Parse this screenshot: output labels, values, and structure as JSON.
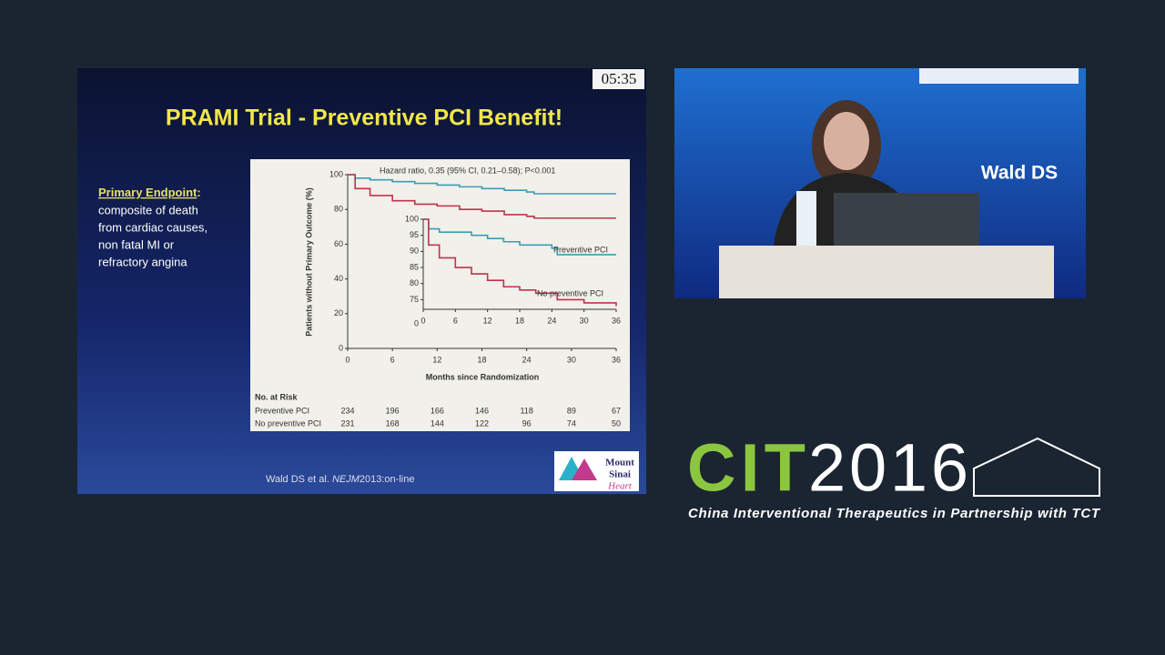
{
  "slide": {
    "timer": "05:35",
    "title": "PRAMI Trial - Preventive PCI Benefit!",
    "endpoint_heading": "Primary Endpoint",
    "endpoint_colon": ":",
    "endpoint_lines": [
      "composite of death",
      "from cardiac causes,",
      "non fatal MI or",
      "refractory angina"
    ],
    "citation": [
      "Wald DS et al. ",
      "NEJM",
      "2013:on-line"
    ],
    "logo": [
      "Mount",
      "Sinai",
      "Heart"
    ]
  },
  "video": {
    "sign": "Wald DS"
  },
  "event": {
    "name": "CIT",
    "year": "2016",
    "tagline": "China Interventional Therapeutics in Partnership with TCT"
  },
  "chart_data": {
    "type": "line",
    "annotation": "Hazard ratio, 0.35 (95% CI, 0.21–0.58); P<0.001",
    "ylabel": "Patients without Primary Outcome (%)",
    "xlabel": "Months since Randomization",
    "xlim": [
      0,
      36
    ],
    "ylim": [
      0,
      100
    ],
    "xticks": [
      0,
      6,
      12,
      18,
      24,
      30,
      36
    ],
    "yticks": [
      0,
      20,
      40,
      60,
      80,
      100
    ],
    "x": [
      0,
      1,
      3,
      6,
      9,
      12,
      15,
      18,
      21,
      24,
      25,
      30,
      36
    ],
    "series": [
      {
        "color": "#3f9bb5",
        "values": [
          100,
          98,
          97,
          96,
          95,
          94,
          93,
          92,
          91,
          90,
          89,
          89,
          89
        ]
      },
      {
        "color": "#c0334b",
        "values": [
          100,
          92,
          88,
          85,
          83,
          82,
          80,
          79,
          77,
          76,
          75,
          75,
          75
        ]
      }
    ],
    "inset": {
      "xlim": [
        0,
        36
      ],
      "ylim": [
        72,
        100
      ],
      "xticks": [
        0,
        6,
        12,
        18,
        24,
        30,
        36
      ],
      "yticks": [
        75,
        80,
        85,
        90,
        95,
        100
      ],
      "ybreak_label": "0",
      "x": [
        0,
        1,
        3,
        6,
        9,
        12,
        15,
        18,
        21,
        24,
        25,
        30,
        36
      ],
      "series": [
        {
          "name": "Preventive PCI",
          "color": "#3f9bb5",
          "values": [
            100,
            97,
            96,
            96,
            95,
            94,
            93,
            92,
            92,
            91,
            89,
            89,
            89
          ]
        },
        {
          "name": "No preventive PCI",
          "color": "#c0334b",
          "values": [
            100,
            92,
            88,
            85,
            83,
            81,
            79,
            78,
            77,
            77,
            75,
            74,
            73
          ]
        }
      ]
    },
    "risk_table": {
      "title": "No. at Risk",
      "rows": [
        {
          "label": "Preventive PCI",
          "values": [
            234,
            196,
            166,
            146,
            118,
            89,
            67
          ]
        },
        {
          "label": "No preventive PCI",
          "values": [
            231,
            168,
            144,
            122,
            96,
            74,
            50
          ]
        }
      ]
    }
  }
}
